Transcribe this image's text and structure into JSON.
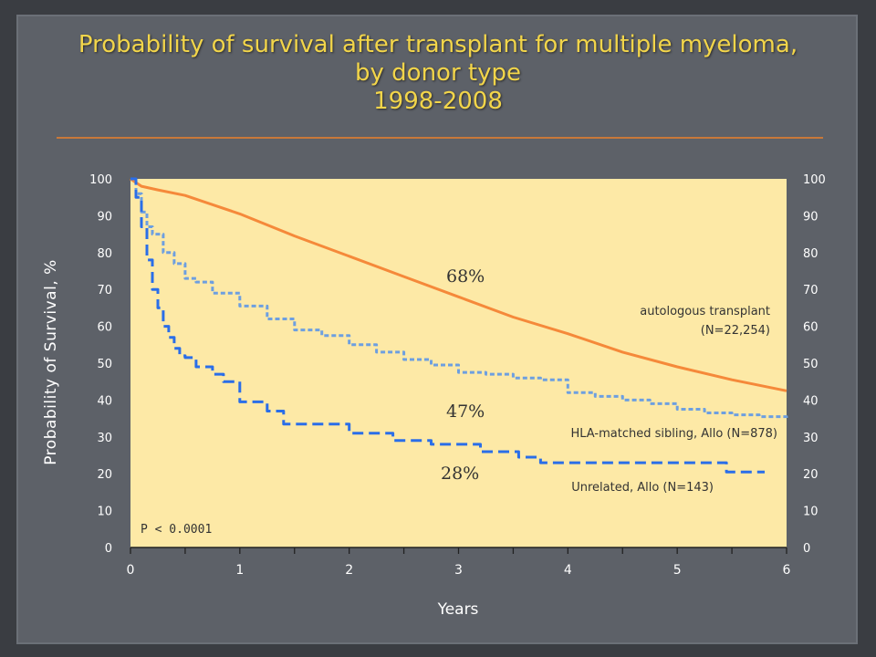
{
  "title": {
    "line1": "Probability of survival after transplant for multiple myeloma,",
    "line2": "by donor type",
    "line3": "1998-2008"
  },
  "colors": {
    "background": "#5d6168",
    "plot_area": "#fde9a6",
    "title": "#f2d54a",
    "autologous": "#f5893a",
    "sibling": "#6d9fe0",
    "unrelated": "#2a6ee8"
  },
  "chart_data": {
    "type": "line",
    "title": "Probability of survival after transplant for multiple myeloma, by donor type 1998-2008",
    "xlabel": "Years",
    "ylabel": "Probability of Survival, %",
    "xlim": [
      0,
      6
    ],
    "ylim": [
      0,
      100
    ],
    "x_ticks": [
      0,
      1,
      2,
      3,
      4,
      5,
      6
    ],
    "y_ticks": [
      0,
      10,
      20,
      30,
      40,
      50,
      60,
      70,
      80,
      90,
      100
    ],
    "grid": false,
    "series": [
      {
        "name": "autologous transplant (N=22,254)",
        "label_lines": [
          "autologous transplant",
          "(N=22,254)"
        ],
        "style": "solid",
        "color": "#f5893a",
        "x": [
          0,
          0.1,
          0.25,
          0.5,
          0.75,
          1,
          1.5,
          2,
          2.5,
          3,
          3.5,
          4,
          4.5,
          5,
          5.5,
          6
        ],
        "y": [
          100,
          98,
          97,
          95.5,
          93,
          90.5,
          84.5,
          79,
          73.5,
          68,
          62.5,
          58,
          53,
          49,
          45.5,
          42.5
        ]
      },
      {
        "name": "HLA-matched sibling, Allo (N=878)",
        "label_lines": [
          "HLA-matched sibling, Allo (N=878)"
        ],
        "style": "dashed",
        "color": "#6d9fe0",
        "x": [
          0,
          0.05,
          0.1,
          0.15,
          0.2,
          0.3,
          0.4,
          0.5,
          0.6,
          0.75,
          1,
          1.25,
          1.5,
          1.75,
          2,
          2.25,
          2.5,
          2.75,
          3,
          3.25,
          3.5,
          3.75,
          4,
          4.25,
          4.5,
          4.75,
          5,
          5.25,
          5.5,
          5.75,
          6
        ],
        "y": [
          100,
          96,
          91,
          87,
          85,
          80,
          77,
          73,
          72,
          69,
          65.5,
          62,
          59,
          57.5,
          55,
          53,
          51,
          49.5,
          47.5,
          47,
          46,
          45.5,
          42,
          41,
          40,
          39,
          37.5,
          36.5,
          36,
          35.5,
          35
        ]
      },
      {
        "name": "Unrelated, Allo (N=143)",
        "label_lines": [
          "Unrelated, Allo (N=143)"
        ],
        "style": "dashed",
        "color": "#2a6ee8",
        "x": [
          0,
          0.05,
          0.1,
          0.15,
          0.2,
          0.25,
          0.3,
          0.35,
          0.4,
          0.45,
          0.5,
          0.6,
          0.75,
          0.85,
          1,
          1.25,
          1.4,
          1.75,
          2,
          2.25,
          2.4,
          2.75,
          3,
          3.2,
          3.35,
          3.55,
          3.75,
          4,
          4.5,
          5,
          5.45,
          5.8
        ],
        "y": [
          100,
          95,
          87,
          78,
          70,
          65,
          60,
          57,
          54,
          52,
          51.5,
          49,
          47,
          45,
          39.5,
          37,
          33.5,
          33.5,
          31,
          31,
          29,
          28,
          28,
          26,
          26,
          24.5,
          23,
          23,
          23,
          23,
          20.5,
          20.5
        ]
      }
    ],
    "annotations": [
      "68%",
      "47%",
      "28%",
      "P < 0.0001"
    ]
  }
}
